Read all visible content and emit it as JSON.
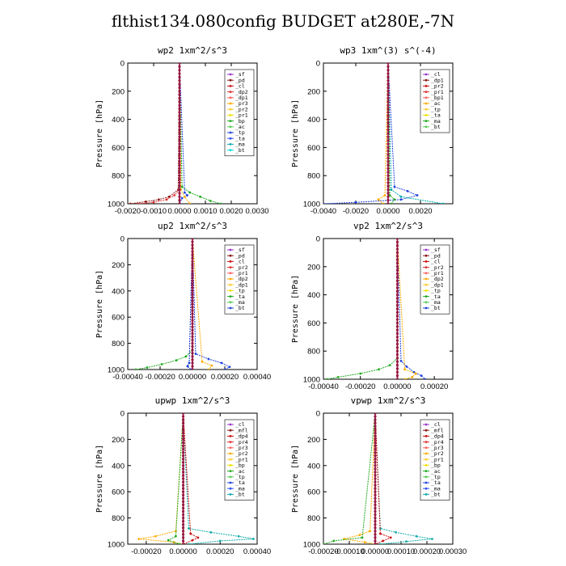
{
  "title": "flthist134.080config  BUDGET at280E,-7N",
  "chart_data": [
    {
      "type": "line",
      "title": "wp2  1xm^2/s^3",
      "ylabel": "Pressure [hPa]",
      "xlim": [
        -0.002,
        0.003
      ],
      "ylim": [
        1000,
        0
      ],
      "xticks": [
        "-0.0020",
        "-0.0010",
        "0.0000",
        "0.0010",
        "0.0020",
        "0.0030"
      ],
      "xtick_values": [
        -0.002,
        -0.001,
        0,
        0.001,
        0.002,
        0.003
      ],
      "yticks": [
        "0",
        "200",
        "400",
        "600",
        "800",
        "1000"
      ],
      "legend": [
        "_sf",
        "_pd",
        "_cl",
        "_dp2",
        "_dp1",
        "_pr3",
        "_pr2",
        "_pr1",
        "_bp",
        "_ac",
        "_tp",
        "_ta",
        "_ma",
        "_bt"
      ],
      "legend_placement": "top-right",
      "series": [
        {
          "name": "_cl",
          "color": "#8b1a1a",
          "p": [
            0,
            900,
            950,
            970,
            985,
            1000
          ],
          "values": [
            0,
            -5e-05,
            -0.0004,
            -0.0008,
            -0.0013,
            -0.0019
          ]
        },
        {
          "name": "_dp1",
          "color": "#e03030",
          "p": [
            0,
            900,
            940,
            970,
            990,
            1000
          ],
          "values": [
            0,
            0,
            -0.0002,
            -0.0005,
            -0.001,
            -0.0016
          ]
        },
        {
          "name": "_ac",
          "color": "#22aa22",
          "p": [
            0,
            880,
            920,
            950,
            980,
            1000
          ],
          "values": [
            0,
            0.0001,
            0.0004,
            0.0008,
            0.0012,
            0.0016
          ]
        },
        {
          "name": "_tp",
          "color": "#2244dd",
          "p": [
            0,
            920,
            940,
            960,
            1000
          ],
          "values": [
            0,
            0.0002,
            0.0003,
            0.0001,
            0
          ]
        },
        {
          "name": "_pr1",
          "color": "#ffaa00",
          "p": [
            0,
            900,
            950,
            1000
          ],
          "values": [
            0,
            5e-05,
            0.0002,
            0.0004
          ]
        },
        {
          "name": "_bt",
          "color": "#00cccc",
          "p": [
            0,
            1000
          ],
          "values": [
            0,
            0
          ]
        },
        {
          "name": "_sf",
          "color": "#9933cc",
          "p": [
            0,
            1000
          ],
          "values": [
            0,
            0
          ]
        }
      ]
    },
    {
      "type": "line",
      "title": "wp3  1xm^(3) s^(-4)",
      "ylabel": "Pressure [hPa]",
      "xlim": [
        -0.004,
        0.004
      ],
      "ylim": [
        1000,
        0
      ],
      "xticks": [
        "-0.0040",
        "-0.0020",
        "0.0000",
        "0.0020"
      ],
      "xtick_values": [
        -0.004,
        -0.002,
        0,
        0.002
      ],
      "yticks": [
        "0",
        "200",
        "400",
        "600",
        "800",
        "1000"
      ],
      "legend": [
        "_cl",
        "_dp1",
        "_pr2",
        "_pr1",
        "_bp1",
        "_ac",
        "_tp",
        "_ta",
        "_ma",
        "_bt"
      ],
      "legend_placement": "top-right",
      "series": [
        {
          "name": "_ta",
          "color": "#2244dd",
          "p": [
            0,
            880,
            910,
            940,
            970,
            990,
            1000
          ],
          "values": [
            0,
            0.0004,
            0.0012,
            0.0018,
            0.0008,
            -0.002,
            -0.004
          ]
        },
        {
          "name": "_ma",
          "color": "#00aaaa",
          "p": [
            0,
            900,
            950,
            1000
          ],
          "values": [
            0,
            0.0002,
            0.0008,
            0.0034
          ]
        },
        {
          "name": "_pr1",
          "color": "#ffaa00",
          "p": [
            0,
            940,
            970,
            1000
          ],
          "values": [
            0,
            -0.0002,
            -0.0006,
            -0.0003
          ]
        },
        {
          "name": "_ac",
          "color": "#22aa22",
          "p": [
            0,
            940,
            970,
            1000
          ],
          "values": [
            0,
            0.0001,
            0.0004,
            0.0002
          ]
        },
        {
          "name": "_dp1",
          "color": "#cc1111",
          "p": [
            0,
            1000
          ],
          "values": [
            0,
            0
          ]
        }
      ]
    },
    {
      "type": "line",
      "title": "up2  1xm^2/s^3",
      "ylabel": "Pressure [hPa]",
      "xlim": [
        -0.0004,
        0.0004
      ],
      "ylim": [
        1000,
        0
      ],
      "xticks": [
        "-0.00040",
        "-0.00020",
        "0.00000",
        "0.00020",
        "0.00040"
      ],
      "xtick_values": [
        -0.0004,
        -0.0002,
        0,
        0.0002,
        0.0004
      ],
      "yticks": [
        "0",
        "200",
        "400",
        "600",
        "800",
        "1000"
      ],
      "legend": [
        "_sf",
        "_pd",
        "_cl",
        "_pr2",
        "_pr1",
        "_dp2",
        "_dp1",
        "_tp",
        "_ta",
        "_ma",
        "_bt"
      ],
      "legend_placement": "top-right",
      "series": [
        {
          "name": "_dp1",
          "color": "#22aa22",
          "p": [
            0,
            850,
            900,
            930,
            960,
            985,
            1000
          ],
          "values": [
            0,
            0,
            -4e-05,
            -0.0001,
            -0.00019,
            -0.00028,
            -0.00035
          ]
        },
        {
          "name": "_ta",
          "color": "#2244dd",
          "p": [
            0,
            880,
            920,
            950,
            980,
            1000
          ],
          "values": [
            0,
            2e-05,
            0.0001,
            0.00018,
            0.00023,
            0.0002
          ]
        },
        {
          "name": "_pr1",
          "color": "#ffaa00",
          "p": [
            0,
            940,
            970,
            1000
          ],
          "values": [
            0,
            6e-05,
            0.00012,
            0.0001
          ]
        },
        {
          "name": "_tp",
          "color": "#1133cc",
          "p": [
            0,
            950,
            975,
            1000
          ],
          "values": [
            0,
            -2e-05,
            -3e-05,
            -1e-05
          ]
        },
        {
          "name": "_pd",
          "color": "#cc1111",
          "p": [
            0,
            1000
          ],
          "values": [
            0,
            0
          ]
        }
      ]
    },
    {
      "type": "line",
      "title": "vp2  1xm^2/s^3",
      "ylabel": "Pressure [hPa]",
      "xlim": [
        -0.0004,
        0.0003
      ],
      "ylim": [
        1000,
        0
      ],
      "xticks": [
        "-0.00040",
        "-0.00020",
        "0.00000",
        "0.00020"
      ],
      "xtick_values": [
        -0.0004,
        -0.0002,
        0,
        0.0002
      ],
      "yticks": [
        "0",
        "200",
        "400",
        "600",
        "800",
        "1000"
      ],
      "legend": [
        "_sf",
        "_pd",
        "_cl",
        "_pr2",
        "_pr1",
        "_dp2",
        "_dp1",
        "_tp",
        "_ta",
        "_ma",
        "_bt"
      ],
      "legend_placement": "top-right",
      "series": [
        {
          "name": "_dp1",
          "color": "#22aa22",
          "p": [
            0,
            850,
            900,
            930,
            960,
            985,
            1000
          ],
          "values": [
            0,
            0,
            -4e-05,
            -0.0001,
            -0.0002,
            -0.00032,
            -0.00038
          ]
        },
        {
          "name": "_ta",
          "color": "#2244dd",
          "p": [
            0,
            870,
            910,
            950,
            975,
            1000
          ],
          "values": [
            0,
            2e-05,
            5e-05,
            9e-05,
            0.00013,
            0.00015
          ]
        },
        {
          "name": "_pr1",
          "color": "#ffaa00",
          "p": [
            0,
            930,
            960,
            985,
            1000
          ],
          "values": [
            0,
            4e-05,
            0.0001,
            8e-05,
            4e-05
          ]
        },
        {
          "name": "_pd",
          "color": "#cc1111",
          "p": [
            0,
            1000
          ],
          "values": [
            0,
            0
          ]
        }
      ]
    },
    {
      "type": "line",
      "title": "upwp  1xm^2/s^3",
      "ylabel": "Pressure [hPa]",
      "xlim": [
        -0.0003,
        0.0004
      ],
      "ylim": [
        1000,
        0
      ],
      "xticks": [
        "-0.00020",
        "0.00000",
        "0.00020",
        "0.00040"
      ],
      "xtick_values": [
        -0.0002,
        0,
        0.0002,
        0.0004
      ],
      "yticks": [
        "0",
        "200",
        "400",
        "600",
        "800",
        "1000"
      ],
      "legend": [
        "_cl",
        "_mfl",
        "_dp4",
        "_pr4",
        "_pr3",
        "_pr2",
        "_pr1",
        "_bp",
        "_ac",
        "_tp",
        "_ta",
        "_ma",
        "_bt"
      ],
      "legend_placement": "top-right",
      "series": [
        {
          "name": "_ma",
          "color": "#11aaaa",
          "p": [
            0,
            880,
            910,
            940,
            960,
            975,
            1000
          ],
          "values": [
            0,
            3e-05,
            0.00015,
            0.0003,
            0.00038,
            0.0002,
            3e-05
          ]
        },
        {
          "name": "_pr1",
          "color": "#ffaa00",
          "p": [
            0,
            900,
            940,
            960,
            985,
            1000
          ],
          "values": [
            0,
            -4e-05,
            -0.00015,
            -0.00024,
            -5e-05,
            0
          ]
        },
        {
          "name": "_dp4",
          "color": "#cc1111",
          "p": [
            0,
            920,
            950,
            970,
            1000
          ],
          "values": [
            0,
            4e-05,
            8e-05,
            5e-05,
            0
          ]
        },
        {
          "name": "_ac",
          "color": "#22aa22",
          "p": [
            0,
            940,
            970,
            1000
          ],
          "values": [
            0,
            -4e-05,
            -8e-05,
            -2e-05
          ]
        },
        {
          "name": "_cl",
          "color": "#9933cc",
          "p": [
            0,
            1000
          ],
          "values": [
            0,
            0
          ]
        }
      ]
    },
    {
      "type": "line",
      "title": "vpwp  1xm^2/s^3",
      "ylabel": "Pressure [hPa]",
      "xlim": [
        -0.0002,
        0.0003
      ],
      "ylim": [
        1000,
        0
      ],
      "xticks": [
        "-0.00020",
        "-0.00010",
        "0.00000",
        "0.00010",
        "0.00020",
        "0.00030"
      ],
      "xtick_values": [
        -0.0002,
        -0.0001,
        0,
        0.0001,
        0.0002,
        0.0003
      ],
      "yticks": [
        "0",
        "200",
        "400",
        "600",
        "800",
        "1000"
      ],
      "legend": [
        "_cl",
        "_mfl",
        "_dp4",
        "_pr4",
        "_pr3",
        "_pr2",
        "_pr1",
        "_bp",
        "_ac",
        "_tp",
        "_ta",
        "_ma",
        "_bt"
      ],
      "legend_placement": "top-right",
      "series": [
        {
          "name": "_ma",
          "color": "#11aaaa",
          "p": [
            0,
            880,
            910,
            940,
            960,
            980,
            1000
          ],
          "values": [
            0,
            2e-05,
            8e-05,
            0.00016,
            0.00022,
            0.00012,
            2e-05
          ]
        },
        {
          "name": "_pr1",
          "color": "#ffaa00",
          "p": [
            0,
            900,
            930,
            960,
            985,
            1000
          ],
          "values": [
            0,
            -2e-05,
            -6e-05,
            -0.00012,
            -4e-05,
            0
          ]
        },
        {
          "name": "_ac",
          "color": "#22aa22",
          "p": [
            0,
            950,
            975,
            1000
          ],
          "values": [
            0,
            -5e-05,
            -0.00016,
            -0.0002
          ]
        },
        {
          "name": "_dp4",
          "color": "#cc1111",
          "p": [
            0,
            920,
            950,
            975,
            1000
          ],
          "values": [
            0,
            2e-05,
            6e-05,
            3e-05,
            0
          ]
        },
        {
          "name": "_cl",
          "color": "#9933cc",
          "p": [
            0,
            1000
          ],
          "values": [
            0,
            0
          ]
        }
      ]
    }
  ]
}
